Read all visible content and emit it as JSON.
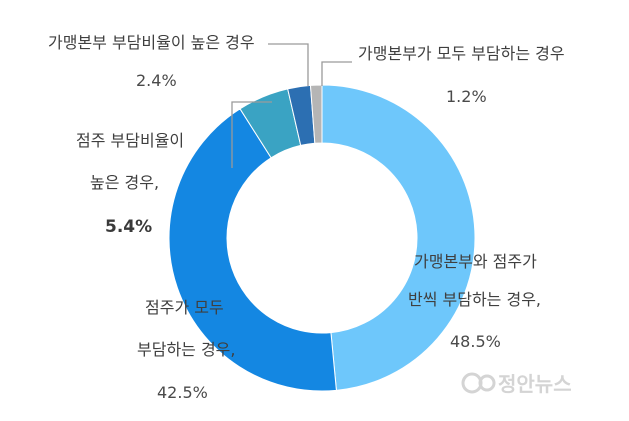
{
  "chart_data": {
    "type": "pie",
    "categories": [
      "가맹본부와 점주가 반씩 부담하는 경우,",
      "점주가 모두 부담하는 경우,",
      "점주 부담비율이 높은 경우,",
      "가맹본부 부담비율이 높은 경우",
      "가맹본부가 모두 부담하는 경우"
    ],
    "values": [
      48.5,
      42.5,
      5.4,
      2.4,
      1.2
    ],
    "value_labels": [
      "48.5%",
      "42.5%",
      "5.4%",
      "2.4%",
      "1.2%"
    ],
    "colors": [
      "#6ec7fb",
      "#1487e2",
      "#3aa3c3",
      "#2c6fb2",
      "#b5b5b5"
    ],
    "donut": true,
    "legend": "none"
  },
  "labels": {
    "seg0_line1": "가맹본부와 점주가",
    "seg0_line2": "반씩 부담하는 경우,",
    "seg0_value": "48.5%",
    "seg1_line1": "점주가 모두",
    "seg1_line2": "부담하는 경우,",
    "seg1_value": "42.5%",
    "seg2_line1": "점주 부담비율이",
    "seg2_line2": "높은 경우,",
    "seg2_value": "5.4%",
    "seg3_line1": "가맹본부 부담비율이 높은 경우",
    "seg3_value": "2.4%",
    "seg4_line1": "가맹본부가 모두 부담하는 경우",
    "seg4_value": "1.2%"
  },
  "watermark": {
    "text": "정안뉴스"
  }
}
